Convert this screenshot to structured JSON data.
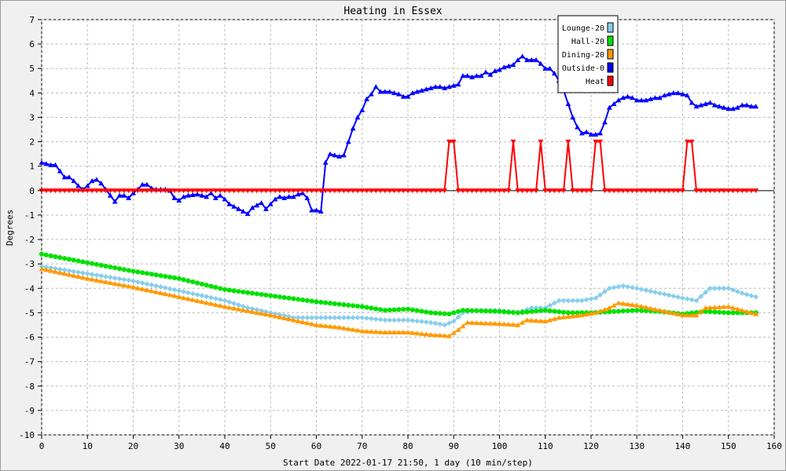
{
  "chart_data": {
    "type": "line",
    "title": "Heating in Essex",
    "xlabel": "Start Date 2022-01-17 21:50, 1 day (10 min/step)",
    "ylabel": "Degrees",
    "xlim": [
      0,
      160
    ],
    "ylim": [
      -10,
      7
    ],
    "xticks": [
      0,
      10,
      20,
      30,
      40,
      50,
      60,
      70,
      80,
      90,
      100,
      110,
      120,
      130,
      140,
      150,
      160
    ],
    "yticks": [
      7,
      6,
      5,
      4,
      3,
      2,
      1,
      0,
      -1,
      -2,
      -3,
      -4,
      -5,
      -6,
      -7,
      -8,
      -9,
      -10
    ],
    "grid": true,
    "legend_position": "top-right",
    "series": [
      {
        "name": "Lounge-20",
        "color": "#87ceeb",
        "marker": "diamond",
        "points": [
          [
            0,
            -3.1
          ],
          [
            10,
            -3.4
          ],
          [
            20,
            -3.7
          ],
          [
            30,
            -4.1
          ],
          [
            40,
            -4.5
          ],
          [
            45,
            -4.8
          ],
          [
            50,
            -5.0
          ],
          [
            55,
            -5.2
          ],
          [
            60,
            -5.2
          ],
          [
            65,
            -5.2
          ],
          [
            70,
            -5.2
          ],
          [
            75,
            -5.3
          ],
          [
            80,
            -5.3
          ],
          [
            85,
            -5.4
          ],
          [
            88,
            -5.5
          ],
          [
            90,
            -5.35
          ],
          [
            92,
            -5.0
          ],
          [
            95,
            -4.9
          ],
          [
            100,
            -4.9
          ],
          [
            104,
            -5.0
          ],
          [
            107,
            -4.8
          ],
          [
            110,
            -4.8
          ],
          [
            113,
            -4.5
          ],
          [
            118,
            -4.5
          ],
          [
            121,
            -4.4
          ],
          [
            124,
            -4.0
          ],
          [
            127,
            -3.9
          ],
          [
            130,
            -4.0
          ],
          [
            135,
            -4.2
          ],
          [
            140,
            -4.4
          ],
          [
            143,
            -4.5
          ],
          [
            146,
            -4.0
          ],
          [
            150,
            -4.0
          ],
          [
            153,
            -4.2
          ],
          [
            156,
            -4.35
          ]
        ]
      },
      {
        "name": "Hall-20",
        "color": "#00e000",
        "marker": "circle",
        "points": [
          [
            0,
            -2.6
          ],
          [
            10,
            -2.95
          ],
          [
            20,
            -3.3
          ],
          [
            30,
            -3.6
          ],
          [
            40,
            -4.05
          ],
          [
            50,
            -4.3
          ],
          [
            60,
            -4.55
          ],
          [
            70,
            -4.75
          ],
          [
            75,
            -4.9
          ],
          [
            80,
            -4.85
          ],
          [
            85,
            -5.0
          ],
          [
            89,
            -5.05
          ],
          [
            92,
            -4.9
          ],
          [
            100,
            -4.95
          ],
          [
            104,
            -5.0
          ],
          [
            110,
            -4.9
          ],
          [
            115,
            -5.0
          ],
          [
            120,
            -5.0
          ],
          [
            125,
            -4.95
          ],
          [
            130,
            -4.9
          ],
          [
            135,
            -4.95
          ],
          [
            140,
            -5.05
          ],
          [
            145,
            -4.95
          ],
          [
            150,
            -5.0
          ],
          [
            156,
            -5.0
          ]
        ]
      },
      {
        "name": "Dining-20",
        "color": "#ff9900",
        "marker": "triangle",
        "points": [
          [
            0,
            -3.2
          ],
          [
            10,
            -3.6
          ],
          [
            20,
            -3.95
          ],
          [
            30,
            -4.35
          ],
          [
            40,
            -4.75
          ],
          [
            50,
            -5.1
          ],
          [
            55,
            -5.3
          ],
          [
            60,
            -5.5
          ],
          [
            65,
            -5.6
          ],
          [
            70,
            -5.75
          ],
          [
            75,
            -5.8
          ],
          [
            80,
            -5.8
          ],
          [
            85,
            -5.9
          ],
          [
            89,
            -5.95
          ],
          [
            91,
            -5.7
          ],
          [
            93,
            -5.4
          ],
          [
            100,
            -5.45
          ],
          [
            104,
            -5.5
          ],
          [
            106,
            -5.3
          ],
          [
            110,
            -5.35
          ],
          [
            113,
            -5.2
          ],
          [
            118,
            -5.1
          ],
          [
            121,
            -5.0
          ],
          [
            124,
            -4.8
          ],
          [
            126,
            -4.6
          ],
          [
            130,
            -4.7
          ],
          [
            135,
            -4.9
          ],
          [
            140,
            -5.1
          ],
          [
            143,
            -5.1
          ],
          [
            145,
            -4.8
          ],
          [
            150,
            -4.75
          ],
          [
            153,
            -4.9
          ],
          [
            156,
            -5.05
          ]
        ]
      },
      {
        "name": "Outside-0",
        "color": "#0000ff",
        "marker": "triangle",
        "points": [
          [
            0,
            1.15
          ],
          [
            2,
            1.05
          ],
          [
            3,
            1.05
          ],
          [
            4,
            0.8
          ],
          [
            5,
            0.55
          ],
          [
            6,
            0.55
          ],
          [
            7,
            0.4
          ],
          [
            8,
            0.2
          ],
          [
            9,
            0.05
          ],
          [
            10,
            0.2
          ],
          [
            11,
            0.4
          ],
          [
            12,
            0.45
          ],
          [
            13,
            0.3
          ],
          [
            14,
            0.05
          ],
          [
            15,
            -0.2
          ],
          [
            16,
            -0.45
          ],
          [
            17,
            -0.2
          ],
          [
            18,
            -0.2
          ],
          [
            19,
            -0.3
          ],
          [
            20,
            -0.1
          ],
          [
            21,
            0.05
          ],
          [
            22,
            0.25
          ],
          [
            23,
            0.25
          ],
          [
            24,
            0.1
          ],
          [
            25,
            0.05
          ],
          [
            26,
            0.05
          ],
          [
            27,
            0.05
          ],
          [
            28,
            0.0
          ],
          [
            29,
            -0.3
          ],
          [
            30,
            -0.4
          ],
          [
            31,
            -0.25
          ],
          [
            32,
            -0.2
          ],
          [
            34,
            -0.15
          ],
          [
            35,
            -0.2
          ],
          [
            36,
            -0.25
          ],
          [
            37,
            -0.1
          ],
          [
            38,
            -0.3
          ],
          [
            39,
            -0.2
          ],
          [
            40,
            -0.35
          ],
          [
            41,
            -0.55
          ],
          [
            42,
            -0.65
          ],
          [
            43,
            -0.75
          ],
          [
            44,
            -0.85
          ],
          [
            45,
            -0.95
          ],
          [
            46,
            -0.7
          ],
          [
            47,
            -0.6
          ],
          [
            48,
            -0.5
          ],
          [
            49,
            -0.75
          ],
          [
            50,
            -0.55
          ],
          [
            51,
            -0.35
          ],
          [
            52,
            -0.25
          ],
          [
            53,
            -0.3
          ],
          [
            54,
            -0.25
          ],
          [
            55,
            -0.25
          ],
          [
            56,
            -0.15
          ],
          [
            57,
            -0.1
          ],
          [
            58,
            -0.3
          ],
          [
            59,
            -0.8
          ],
          [
            60,
            -0.8
          ],
          [
            61,
            -0.85
          ],
          [
            62,
            1.15
          ],
          [
            63,
            1.5
          ],
          [
            64,
            1.45
          ],
          [
            65,
            1.4
          ],
          [
            66,
            1.45
          ],
          [
            67,
            2.0
          ],
          [
            68,
            2.55
          ],
          [
            69,
            3.0
          ],
          [
            70,
            3.3
          ],
          [
            71,
            3.75
          ],
          [
            72,
            3.95
          ],
          [
            73,
            4.25
          ],
          [
            74,
            4.05
          ],
          [
            75,
            4.05
          ],
          [
            76,
            4.05
          ],
          [
            77,
            4.0
          ],
          [
            78,
            3.95
          ],
          [
            79,
            3.85
          ],
          [
            80,
            3.85
          ],
          [
            81,
            4.0
          ],
          [
            82,
            4.05
          ],
          [
            83,
            4.1
          ],
          [
            84,
            4.15
          ],
          [
            85,
            4.2
          ],
          [
            86,
            4.25
          ],
          [
            87,
            4.25
          ],
          [
            88,
            4.2
          ],
          [
            89,
            4.25
          ],
          [
            90,
            4.3
          ],
          [
            91,
            4.35
          ],
          [
            92,
            4.7
          ],
          [
            93,
            4.7
          ],
          [
            94,
            4.65
          ],
          [
            95,
            4.7
          ],
          [
            96,
            4.7
          ],
          [
            97,
            4.85
          ],
          [
            98,
            4.75
          ],
          [
            99,
            4.9
          ],
          [
            100,
            4.95
          ],
          [
            101,
            5.05
          ],
          [
            102,
            5.1
          ],
          [
            103,
            5.15
          ],
          [
            104,
            5.35
          ],
          [
            105,
            5.5
          ],
          [
            106,
            5.35
          ],
          [
            107,
            5.35
          ],
          [
            108,
            5.35
          ],
          [
            109,
            5.2
          ],
          [
            110,
            5.0
          ],
          [
            111,
            5.0
          ],
          [
            112,
            4.8
          ],
          [
            113,
            4.5
          ],
          [
            114,
            4.1
          ],
          [
            115,
            3.55
          ],
          [
            116,
            3.0
          ],
          [
            117,
            2.6
          ],
          [
            118,
            2.35
          ],
          [
            119,
            2.4
          ],
          [
            120,
            2.3
          ],
          [
            121,
            2.3
          ],
          [
            122,
            2.35
          ],
          [
            123,
            2.8
          ],
          [
            124,
            3.4
          ],
          [
            125,
            3.55
          ],
          [
            126,
            3.7
          ],
          [
            127,
            3.8
          ],
          [
            128,
            3.85
          ],
          [
            129,
            3.8
          ],
          [
            130,
            3.7
          ],
          [
            131,
            3.7
          ],
          [
            132,
            3.7
          ],
          [
            133,
            3.75
          ],
          [
            134,
            3.8
          ],
          [
            135,
            3.8
          ],
          [
            136,
            3.9
          ],
          [
            137,
            3.95
          ],
          [
            138,
            4.0
          ],
          [
            139,
            4.0
          ],
          [
            140,
            3.95
          ],
          [
            141,
            3.9
          ],
          [
            142,
            3.6
          ],
          [
            143,
            3.45
          ],
          [
            144,
            3.5
          ],
          [
            145,
            3.55
          ],
          [
            146,
            3.6
          ],
          [
            147,
            3.5
          ],
          [
            148,
            3.45
          ],
          [
            149,
            3.4
          ],
          [
            150,
            3.35
          ],
          [
            151,
            3.35
          ],
          [
            152,
            3.4
          ],
          [
            153,
            3.5
          ],
          [
            154,
            3.5
          ],
          [
            155,
            3.45
          ],
          [
            156,
            3.45
          ]
        ]
      },
      {
        "name": "Heat",
        "color": "#ff0000",
        "marker": "triangle-down",
        "points": [
          [
            0,
            0
          ],
          [
            88,
            0
          ],
          [
            89,
            2
          ],
          [
            90,
            2
          ],
          [
            91,
            0
          ],
          [
            102,
            0
          ],
          [
            103,
            2
          ],
          [
            104,
            0
          ],
          [
            108,
            0
          ],
          [
            109,
            2
          ],
          [
            110,
            0
          ],
          [
            114,
            0
          ],
          [
            115,
            2
          ],
          [
            116,
            0
          ],
          [
            120,
            0
          ],
          [
            121,
            2
          ],
          [
            122,
            2
          ],
          [
            123,
            0
          ],
          [
            140,
            0
          ],
          [
            141,
            2
          ],
          [
            142,
            2
          ],
          [
            143,
            0
          ],
          [
            156,
            0
          ]
        ]
      }
    ]
  }
}
